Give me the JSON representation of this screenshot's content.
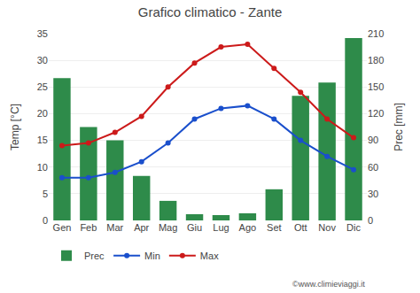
{
  "chart_data": {
    "type": "bar",
    "title": "Grafico climatico - Zante",
    "categories": [
      "Gen",
      "Feb",
      "Mar",
      "Apr",
      "Mag",
      "Giu",
      "Lug",
      "Ago",
      "Set",
      "Ott",
      "Nov",
      "Dic"
    ],
    "series": [
      {
        "name": "Prec",
        "type": "bar",
        "axis": "y2",
        "color": "#2e8b4a",
        "values": [
          160,
          105,
          90,
          50,
          22,
          7,
          6,
          8,
          35,
          140,
          155,
          205
        ]
      },
      {
        "name": "Min",
        "type": "line",
        "marker": "circle",
        "color": "#1a4fcc",
        "values": [
          8,
          8,
          9,
          11,
          14.5,
          19,
          21,
          21.5,
          19,
          15,
          12,
          9.5
        ]
      },
      {
        "name": "Max",
        "type": "line",
        "marker": "circle",
        "color": "#cc1a1a",
        "values": [
          14,
          14.5,
          16.5,
          19.5,
          25,
          29.5,
          32.5,
          33,
          28.5,
          24,
          19,
          15.5
        ]
      }
    ],
    "ylabel": "Temp [°C]",
    "y2label": "Prec [mm]",
    "ylim": [
      0,
      35
    ],
    "yticks": [
      0,
      5,
      10,
      15,
      20,
      25,
      30,
      35
    ],
    "y2lim": [
      0,
      210
    ],
    "y2ticks": [
      0,
      30,
      60,
      90,
      120,
      150,
      180,
      210
    ],
    "grid": true,
    "legend": "bottom",
    "annotations": [
      {
        "text": "©www.climieviaggi.it"
      }
    ]
  }
}
